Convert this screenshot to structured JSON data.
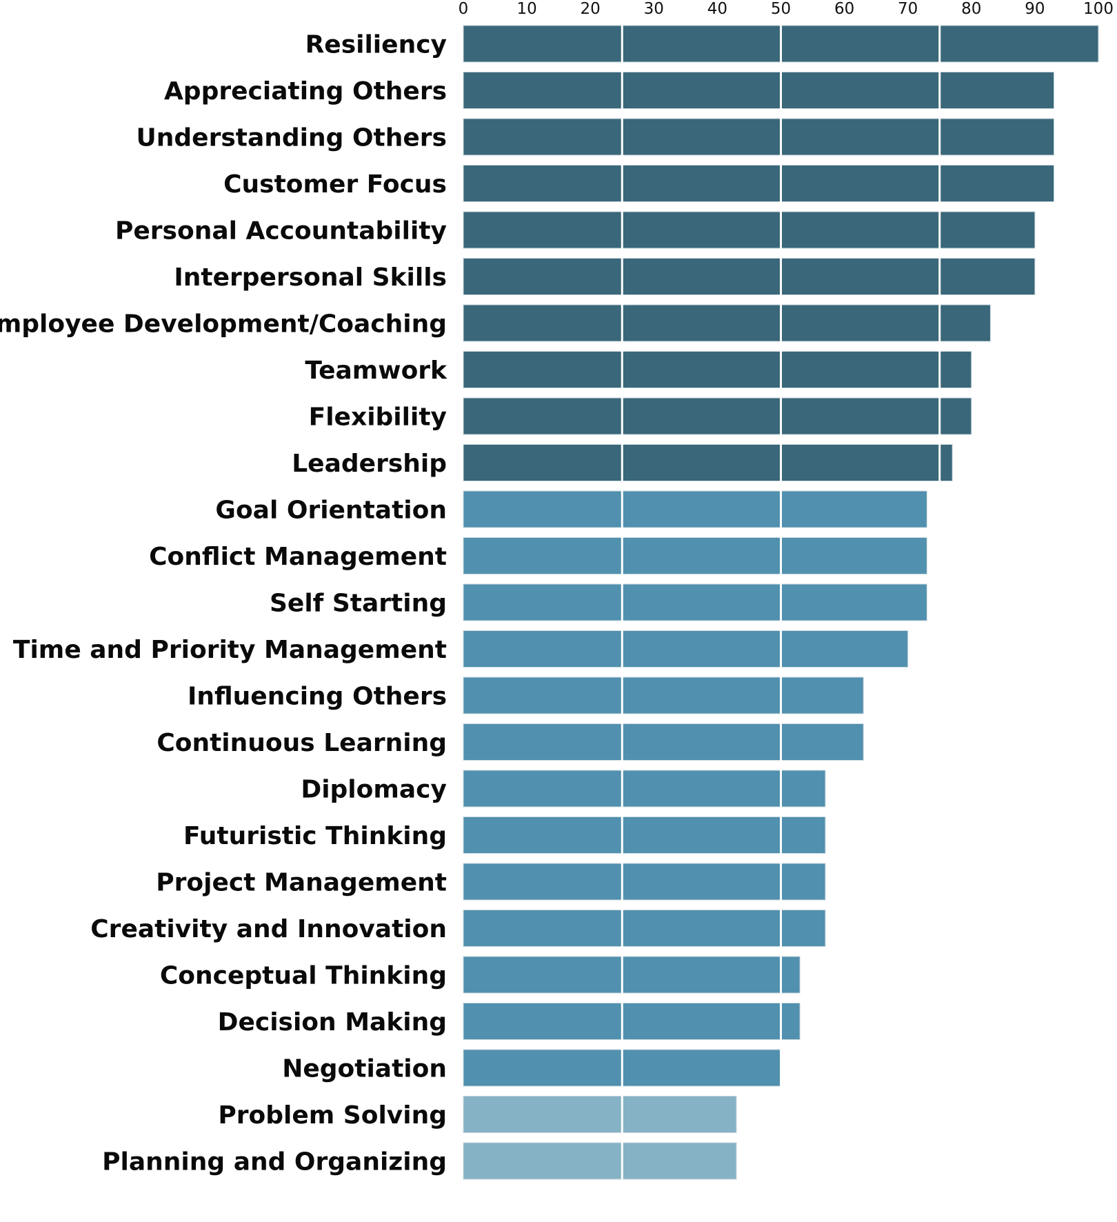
{
  "chart_data": {
    "type": "bar",
    "orientation": "horizontal",
    "title": "",
    "xlabel": "",
    "ylabel": "",
    "xlim": [
      0,
      100
    ],
    "xticks": [
      0,
      10,
      20,
      30,
      40,
      50,
      60,
      70,
      80,
      90,
      100
    ],
    "gridlines": [
      25,
      50,
      75
    ],
    "grid_color": "#ffffff",
    "categories": [
      "Resiliency",
      "Appreciating Others",
      "Understanding Others",
      "Customer Focus",
      "Personal Accountability",
      "Interpersonal Skills",
      "Employee Development/Coaching",
      "Teamwork",
      "Flexibility",
      "Leadership",
      "Goal Orientation",
      "Conflict Management",
      "Self Starting",
      "Time and Priority Management",
      "Influencing Others",
      "Continuous Learning",
      "Diplomacy",
      "Futuristic Thinking",
      "Project Management",
      "Creativity and Innovation",
      "Conceptual Thinking",
      "Decision Making",
      "Negotiation",
      "Problem Solving",
      "Planning and Organizing"
    ],
    "values": [
      100,
      93,
      93,
      93,
      90,
      90,
      83,
      80,
      80,
      77,
      73,
      73,
      73,
      70,
      63,
      63,
      57,
      57,
      57,
      57,
      53,
      53,
      50,
      43,
      43
    ],
    "color_bands": [
      {
        "min": 75,
        "color": "#3a6779"
      },
      {
        "min": 45,
        "color": "#5190ae"
      },
      {
        "min": 0,
        "color": "#86b2c5"
      }
    ]
  }
}
